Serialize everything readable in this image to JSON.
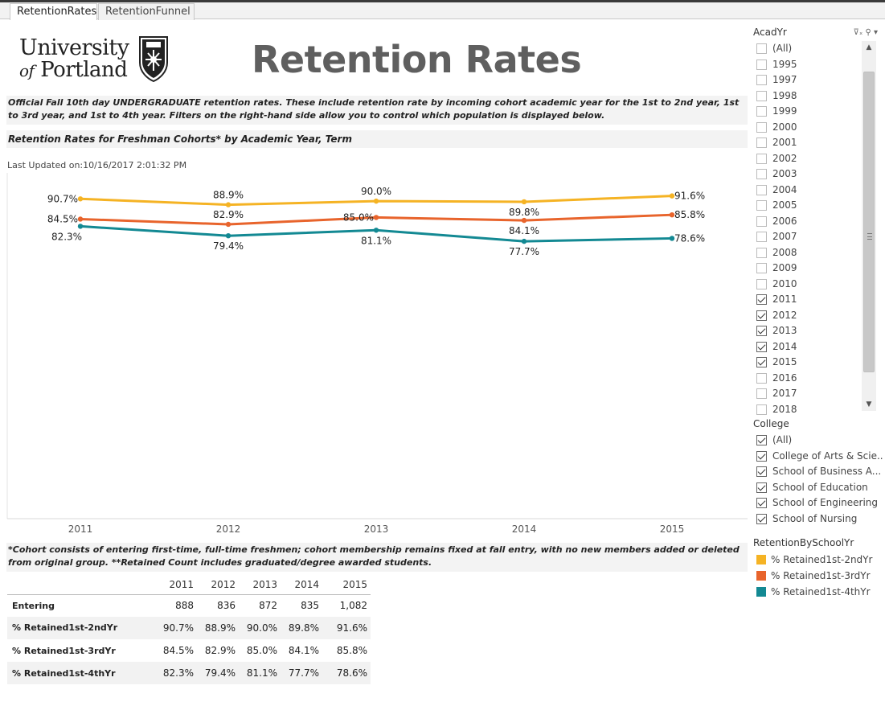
{
  "tabs": [
    {
      "label": "RetentionRates",
      "active": true
    },
    {
      "label": "RetentionFunnel",
      "active": false
    }
  ],
  "logo": {
    "line1": "University",
    "of": "of",
    "line2": "Portland"
  },
  "page_title": "Retention Rates",
  "description": "Official Fall 10th day UNDERGRADUATE retention rates. These include retention rate by incoming cohort academic year for the 1st to 2nd year, 1st to 3rd year, and 1st to 4th year.  Filters on the right-hand side allow you to control which population is displayed below.",
  "subheading": "Retention Rates for Freshman Cohorts* by Academic Year, Term",
  "last_updated": "Last Updated on:10/16/2017 2:01:32 PM",
  "chart_data": {
    "type": "line",
    "x": [
      "2011",
      "2012",
      "2013",
      "2014",
      "2015"
    ],
    "series": [
      {
        "name": "% Retained1st-2ndYr",
        "color": "#F5B324",
        "values": [
          90.7,
          88.9,
          90.0,
          89.8,
          91.6
        ],
        "labels": [
          "90.7%",
          "88.9%",
          "90.0%",
          "89.8%",
          "91.6%"
        ]
      },
      {
        "name": "% Retained1st-3rdYr",
        "color": "#E8642C",
        "values": [
          84.5,
          82.9,
          85.0,
          84.1,
          85.8
        ],
        "labels": [
          "84.5%",
          "82.9%",
          "85.0%",
          "84.1%",
          "85.8%"
        ]
      },
      {
        "name": "% Retained1st-4thYr",
        "color": "#138993",
        "values": [
          82.3,
          79.4,
          81.1,
          77.7,
          78.6
        ],
        "labels": [
          "82.3%",
          "79.4%",
          "81.1%",
          "77.7%",
          "78.6%"
        ]
      }
    ],
    "ylim": [
      0,
      100
    ],
    "grid": false,
    "legend": "right"
  },
  "footnote": "*Cohort consists of entering first-time, full-time freshmen; cohort membership remains fixed at fall entry, with no new members added or deleted from original group. **Retained Count includes graduated/degree awarded students.",
  "table": {
    "columns": [
      "2011",
      "2012",
      "2013",
      "2014",
      "2015"
    ],
    "rows": [
      {
        "label": "Entering",
        "values": [
          "888",
          "836",
          "872",
          "835",
          "1,082"
        ]
      },
      {
        "label": "% Retained1st-2ndYr",
        "values": [
          "90.7%",
          "88.9%",
          "90.0%",
          "89.8%",
          "91.6%"
        ]
      },
      {
        "label": "% Retained1st-3rdYr",
        "values": [
          "84.5%",
          "82.9%",
          "85.0%",
          "84.1%",
          "85.8%"
        ]
      },
      {
        "label": "% Retained1st-4thYr",
        "values": [
          "82.3%",
          "79.4%",
          "81.1%",
          "77.7%",
          "78.6%"
        ]
      }
    ]
  },
  "filters": {
    "acadyr": {
      "title": "AcadYr",
      "items": [
        {
          "label": "(All)",
          "checked": false
        },
        {
          "label": "1995",
          "checked": false
        },
        {
          "label": "1997",
          "checked": false
        },
        {
          "label": "1998",
          "checked": false
        },
        {
          "label": "1999",
          "checked": false
        },
        {
          "label": "2000",
          "checked": false
        },
        {
          "label": "2001",
          "checked": false
        },
        {
          "label": "2002",
          "checked": false
        },
        {
          "label": "2003",
          "checked": false
        },
        {
          "label": "2004",
          "checked": false
        },
        {
          "label": "2005",
          "checked": false
        },
        {
          "label": "2006",
          "checked": false
        },
        {
          "label": "2007",
          "checked": false
        },
        {
          "label": "2008",
          "checked": false
        },
        {
          "label": "2009",
          "checked": false
        },
        {
          "label": "2010",
          "checked": false
        },
        {
          "label": "2011",
          "checked": true
        },
        {
          "label": "2012",
          "checked": true
        },
        {
          "label": "2013",
          "checked": true
        },
        {
          "label": "2014",
          "checked": true
        },
        {
          "label": "2015",
          "checked": true
        },
        {
          "label": "2016",
          "checked": false
        },
        {
          "label": "2017",
          "checked": false
        },
        {
          "label": "2018",
          "checked": false
        }
      ]
    },
    "college": {
      "title": "College",
      "items": [
        {
          "label": "(All)",
          "checked": true
        },
        {
          "label": "College of Arts & Scie...",
          "checked": true
        },
        {
          "label": "School of Business A...",
          "checked": true
        },
        {
          "label": "School of Education",
          "checked": true
        },
        {
          "label": "School of Engineering",
          "checked": true
        },
        {
          "label": "School of Nursing",
          "checked": true
        }
      ]
    }
  },
  "legend": {
    "title": "RetentionBySchoolYr",
    "items": [
      {
        "label": "% Retained1st-2ndYr",
        "color": "#F5B324"
      },
      {
        "label": "% Retained1st-3rdYr",
        "color": "#E8642C"
      },
      {
        "label": "% Retained1st-4thYr",
        "color": "#138993"
      }
    ]
  }
}
